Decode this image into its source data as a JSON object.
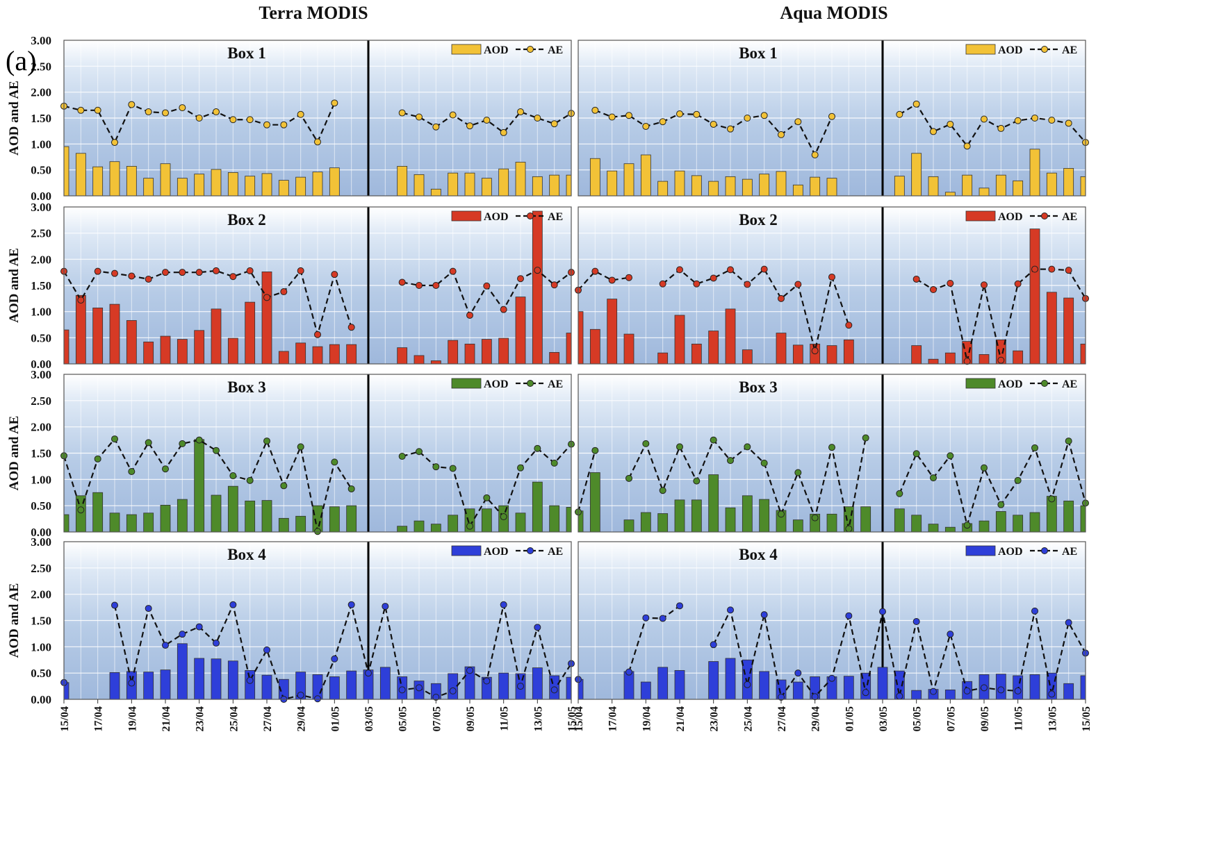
{
  "figure": {
    "columns": [
      "Terra MODIS",
      "Aqua MODIS"
    ],
    "panel_label": "(a)",
    "ylabel": "AOD and AE",
    "yticks": [
      "0.00",
      "0.50",
      "1.00",
      "1.50",
      "2.00",
      "2.50",
      "3.00"
    ],
    "legend": {
      "bar": "AOD",
      "line": "AE"
    },
    "colors": {
      "box1": "#f2c237",
      "box2": "#d63a25",
      "box3": "#4e8a2a",
      "box4": "#2e3fd9"
    }
  },
  "chart_data": [
    {
      "type": "bar+line",
      "instrument": "Terra MODIS",
      "title": "Box 1",
      "color": "#f2c237",
      "ylabel": "AOD and AE",
      "ylim": [
        0,
        3
      ],
      "grid": true,
      "legend_position": "top-right",
      "x": [
        "15/04",
        "16/04",
        "17/04",
        "18/04",
        "19/04",
        "20/04",
        "21/04",
        "22/04",
        "23/04",
        "24/04",
        "25/04",
        "26/04",
        "27/04",
        "28/04",
        "29/04",
        "30/04",
        "01/05",
        "02/05",
        "03/05",
        "04/05",
        "05/05",
        "06/05",
        "07/05",
        "08/05",
        "09/05",
        "10/05",
        "11/05",
        "12/05",
        "13/05",
        "14/05",
        "15/05"
      ],
      "divider": "03/05",
      "series": [
        {
          "name": "AOD",
          "type": "bar",
          "values": [
            0.95,
            0.82,
            0.56,
            0.66,
            0.57,
            0.34,
            0.62,
            0.34,
            0.42,
            0.51,
            0.45,
            0.38,
            0.43,
            0.3,
            0.36,
            0.46,
            0.54,
            null,
            null,
            null,
            0.57,
            0.41,
            0.13,
            0.44,
            0.44,
            0.34,
            0.52,
            0.65,
            0.37,
            0.4,
            0.4
          ]
        },
        {
          "name": "AE",
          "type": "line",
          "values": [
            1.73,
            1.65,
            1.65,
            1.03,
            1.76,
            1.62,
            1.6,
            1.7,
            1.5,
            1.62,
            1.47,
            1.47,
            1.37,
            1.37,
            1.57,
            1.04,
            1.79,
            null,
            null,
            null,
            1.6,
            1.52,
            1.33,
            1.56,
            1.35,
            1.46,
            1.22,
            1.62,
            1.5,
            1.39,
            1.59
          ]
        }
      ]
    },
    {
      "type": "bar+line",
      "instrument": "Aqua MODIS",
      "title": "Box 1",
      "color": "#f2c237",
      "ylabel": "AOD and AE",
      "ylim": [
        0,
        3
      ],
      "grid": true,
      "legend_position": "top-right",
      "x": [
        "15/04",
        "16/04",
        "17/04",
        "18/04",
        "19/04",
        "20/04",
        "21/04",
        "22/04",
        "23/04",
        "24/04",
        "25/04",
        "26/04",
        "27/04",
        "28/04",
        "29/04",
        "30/04",
        "01/05",
        "02/05",
        "03/05",
        "04/05",
        "05/05",
        "06/05",
        "07/05",
        "08/05",
        "09/05",
        "10/05",
        "11/05",
        "12/05",
        "13/05",
        "14/05",
        "15/05"
      ],
      "divider": "03/05",
      "series": [
        {
          "name": "AOD",
          "type": "bar",
          "values": [
            null,
            0.72,
            0.48,
            0.62,
            0.79,
            0.28,
            0.48,
            0.39,
            0.28,
            0.37,
            0.32,
            0.42,
            0.47,
            0.21,
            0.36,
            0.34,
            null,
            null,
            null,
            0.38,
            0.82,
            0.37,
            0.07,
            0.4,
            0.15,
            0.4,
            0.29,
            0.9,
            0.44,
            0.53,
            0.37
          ]
        },
        {
          "name": "AE",
          "type": "line",
          "values": [
            null,
            1.65,
            1.52,
            1.55,
            1.34,
            1.43,
            1.58,
            1.57,
            1.38,
            1.29,
            1.5,
            1.55,
            1.18,
            1.43,
            0.79,
            1.53,
            null,
            null,
            null,
            1.57,
            1.77,
            1.24,
            1.38,
            0.96,
            1.48,
            1.3,
            1.45,
            1.5,
            1.46,
            1.4,
            1.03
          ]
        }
      ]
    },
    {
      "type": "bar+line",
      "instrument": "Terra MODIS",
      "title": "Box 2",
      "color": "#d63a25",
      "ylabel": "AOD and AE",
      "ylim": [
        0,
        3
      ],
      "grid": true,
      "legend_position": "top-right",
      "x": [
        "15/04",
        "16/04",
        "17/04",
        "18/04",
        "19/04",
        "20/04",
        "21/04",
        "22/04",
        "23/04",
        "24/04",
        "25/04",
        "26/04",
        "27/04",
        "28/04",
        "29/04",
        "30/04",
        "01/05",
        "02/05",
        "03/05",
        "04/05",
        "05/05",
        "06/05",
        "07/05",
        "08/05",
        "09/05",
        "10/05",
        "11/05",
        "12/05",
        "13/05",
        "14/05",
        "15/05"
      ],
      "divider": "03/05",
      "series": [
        {
          "name": "AOD",
          "type": "bar",
          "values": [
            0.65,
            1.31,
            1.07,
            1.14,
            0.83,
            0.42,
            0.53,
            0.47,
            0.64,
            1.05,
            0.49,
            1.18,
            1.76,
            0.24,
            0.4,
            0.33,
            0.37,
            0.37,
            null,
            null,
            0.31,
            0.16,
            0.06,
            0.45,
            0.38,
            0.47,
            0.49,
            1.28,
            2.92,
            0.22,
            0.59
          ]
        },
        {
          "name": "AE",
          "type": "line",
          "values": [
            1.77,
            1.22,
            1.77,
            1.73,
            1.68,
            1.62,
            1.75,
            1.75,
            1.75,
            1.78,
            1.67,
            1.78,
            1.27,
            1.38,
            1.78,
            0.56,
            1.71,
            0.7,
            null,
            null,
            1.56,
            1.5,
            1.5,
            1.77,
            0.93,
            1.49,
            1.04,
            1.63,
            1.79,
            1.51,
            1.75
          ]
        }
      ]
    },
    {
      "type": "bar+line",
      "instrument": "Aqua MODIS",
      "title": "Box 2",
      "color": "#d63a25",
      "ylabel": "AOD and AE",
      "ylim": [
        0,
        3
      ],
      "grid": true,
      "legend_position": "top-right",
      "x": [
        "15/04",
        "16/04",
        "17/04",
        "18/04",
        "19/04",
        "20/04",
        "21/04",
        "22/04",
        "23/04",
        "24/04",
        "25/04",
        "26/04",
        "27/04",
        "28/04",
        "29/04",
        "30/04",
        "01/05",
        "02/05",
        "03/05",
        "04/05",
        "05/05",
        "06/05",
        "07/05",
        "08/05",
        "09/05",
        "10/05",
        "11/05",
        "12/05",
        "13/05",
        "14/05",
        "15/05"
      ],
      "divider": "03/05",
      "series": [
        {
          "name": "AOD",
          "type": "bar",
          "values": [
            1.0,
            0.66,
            1.24,
            0.57,
            null,
            0.21,
            0.93,
            0.38,
            0.63,
            1.05,
            0.27,
            null,
            0.59,
            0.36,
            0.38,
            0.35,
            0.46,
            null,
            null,
            null,
            0.35,
            0.09,
            0.21,
            0.43,
            0.18,
            0.46,
            0.25,
            2.58,
            1.37,
            1.26,
            0.38
          ]
        },
        {
          "name": "AE",
          "type": "line",
          "values": [
            1.41,
            1.77,
            1.6,
            1.65,
            null,
            1.53,
            1.8,
            1.53,
            1.64,
            1.8,
            1.52,
            1.81,
            1.25,
            1.52,
            0.25,
            1.66,
            0.74,
            null,
            null,
            null,
            1.62,
            1.42,
            1.54,
            0.05,
            1.51,
            0.07,
            1.53,
            1.81,
            1.81,
            1.79,
            1.25
          ]
        }
      ]
    },
    {
      "type": "bar+line",
      "instrument": "Terra MODIS",
      "title": "Box 3",
      "color": "#4e8a2a",
      "ylabel": "AOD and AE",
      "ylim": [
        0,
        3
      ],
      "grid": true,
      "legend_position": "top-right",
      "x": [
        "15/04",
        "16/04",
        "17/04",
        "18/04",
        "19/04",
        "20/04",
        "21/04",
        "22/04",
        "23/04",
        "24/04",
        "25/04",
        "26/04",
        "27/04",
        "28/04",
        "29/04",
        "30/04",
        "01/05",
        "02/05",
        "03/05",
        "04/05",
        "05/05",
        "06/05",
        "07/05",
        "08/05",
        "09/05",
        "10/05",
        "11/05",
        "12/05",
        "13/05",
        "14/05",
        "15/05"
      ],
      "divider": "03/05",
      "series": [
        {
          "name": "AOD",
          "type": "bar",
          "values": [
            0.33,
            0.69,
            0.75,
            0.36,
            0.33,
            0.36,
            0.51,
            0.62,
            1.76,
            0.7,
            0.87,
            0.59,
            0.6,
            0.26,
            0.3,
            0.5,
            0.48,
            0.5,
            null,
            null,
            0.11,
            0.21,
            0.15,
            0.32,
            0.44,
            0.44,
            0.5,
            0.36,
            0.95,
            0.5,
            0.47
          ]
        },
        {
          "name": "AE",
          "type": "line",
          "values": [
            1.45,
            0.42,
            1.39,
            1.77,
            1.15,
            1.7,
            1.2,
            1.68,
            1.75,
            1.55,
            1.07,
            0.98,
            1.73,
            0.88,
            1.62,
            0.01,
            1.33,
            0.82,
            null,
            null,
            1.44,
            1.53,
            1.24,
            1.21,
            0.11,
            0.65,
            0.29,
            1.22,
            1.59,
            1.31,
            1.67
          ]
        }
      ]
    },
    {
      "type": "bar+line",
      "instrument": "Aqua MODIS",
      "title": "Box 3",
      "color": "#4e8a2a",
      "ylabel": "AOD and AE",
      "ylim": [
        0,
        3
      ],
      "grid": true,
      "legend_position": "top-right",
      "x": [
        "15/04",
        "16/04",
        "17/04",
        "18/04",
        "19/04",
        "20/04",
        "21/04",
        "22/04",
        "23/04",
        "24/04",
        "25/04",
        "26/04",
        "27/04",
        "28/04",
        "29/04",
        "30/04",
        "01/05",
        "02/05",
        "03/05",
        "04/05",
        "05/05",
        "06/05",
        "07/05",
        "08/05",
        "09/05",
        "10/05",
        "11/05",
        "12/05",
        "13/05",
        "14/05",
        "15/05"
      ],
      "divider": "03/05",
      "series": [
        {
          "name": "AOD",
          "type": "bar",
          "values": [
            0.4,
            1.13,
            null,
            0.23,
            0.37,
            0.35,
            0.61,
            0.61,
            1.09,
            0.46,
            0.69,
            0.62,
            0.41,
            0.23,
            0.34,
            0.34,
            0.48,
            0.48,
            null,
            0.44,
            0.32,
            0.15,
            0.09,
            0.16,
            0.21,
            0.39,
            0.32,
            0.37,
            0.68,
            0.59,
            0.5
          ]
        },
        {
          "name": "AE",
          "type": "line",
          "values": [
            0.38,
            1.55,
            null,
            1.02,
            1.68,
            0.79,
            1.62,
            0.97,
            1.75,
            1.36,
            1.62,
            1.31,
            0.34,
            1.13,
            0.27,
            1.61,
            0.06,
            1.79,
            null,
            0.73,
            1.49,
            1.03,
            1.45,
            0.13,
            1.22,
            0.52,
            0.98,
            1.6,
            0.63,
            1.73,
            0.55
          ]
        }
      ]
    },
    {
      "type": "bar+line",
      "instrument": "Terra MODIS",
      "title": "Box 4",
      "color": "#2e3fd9",
      "ylabel": "AOD and AE",
      "ylim": [
        0,
        3
      ],
      "grid": true,
      "legend_position": "top-right",
      "x": [
        "15/04",
        "16/04",
        "17/04",
        "18/04",
        "19/04",
        "20/04",
        "21/04",
        "22/04",
        "23/04",
        "24/04",
        "25/04",
        "26/04",
        "27/04",
        "28/04",
        "29/04",
        "30/04",
        "01/05",
        "02/05",
        "03/05",
        "04/05",
        "05/05",
        "06/05",
        "07/05",
        "08/05",
        "09/05",
        "10/05",
        "11/05",
        "12/05",
        "13/05",
        "14/05",
        "15/05"
      ],
      "divider": "03/05",
      "series": [
        {
          "name": "AOD",
          "type": "bar",
          "values": [
            0.32,
            null,
            null,
            0.51,
            0.53,
            0.52,
            0.56,
            1.06,
            0.78,
            0.77,
            0.73,
            0.55,
            0.46,
            0.38,
            0.52,
            0.47,
            0.43,
            0.54,
            0.56,
            0.61,
            0.43,
            0.35,
            0.3,
            0.49,
            0.62,
            0.42,
            0.5,
            0.49,
            0.6,
            0.45,
            0.42
          ]
        },
        {
          "name": "AE",
          "type": "line",
          "values": [
            0.32,
            null,
            null,
            1.79,
            0.31,
            1.73,
            1.03,
            1.24,
            1.38,
            1.07,
            1.8,
            0.36,
            0.94,
            0.0,
            0.08,
            0.01,
            0.77,
            1.8,
            0.5,
            1.77,
            0.18,
            0.22,
            0.04,
            0.16,
            0.55,
            0.35,
            1.8,
            0.25,
            1.37,
            0.18,
            0.68
          ]
        }
      ]
    },
    {
      "type": "bar+line",
      "instrument": "Aqua MODIS",
      "title": "Box 4",
      "color": "#2e3fd9",
      "ylabel": "AOD and AE",
      "ylim": [
        0,
        3
      ],
      "grid": true,
      "legend_position": "top-right",
      "x": [
        "15/04",
        "16/04",
        "17/04",
        "18/04",
        "19/04",
        "20/04",
        "21/04",
        "22/04",
        "23/04",
        "24/04",
        "25/04",
        "26/04",
        "27/04",
        "28/04",
        "29/04",
        "30/04",
        "01/05",
        "02/05",
        "03/05",
        "04/05",
        "05/05",
        "06/05",
        "07/05",
        "08/05",
        "09/05",
        "10/05",
        "11/05",
        "12/05",
        "13/05",
        "14/05",
        "15/05"
      ],
      "divider": "03/05",
      "series": [
        {
          "name": "AOD",
          "type": "bar",
          "values": [
            0.38,
            null,
            null,
            0.53,
            0.33,
            0.61,
            0.55,
            null,
            0.72,
            0.78,
            0.75,
            0.53,
            0.37,
            0.33,
            0.43,
            0.43,
            0.44,
            0.5,
            0.61,
            0.54,
            0.17,
            0.19,
            0.18,
            0.34,
            0.47,
            0.48,
            0.45,
            0.47,
            0.5,
            0.3,
            0.45
          ]
        },
        {
          "name": "AE",
          "type": "line",
          "values": [
            0.38,
            null,
            null,
            0.52,
            1.55,
            1.54,
            1.78,
            null,
            1.04,
            1.7,
            0.28,
            1.61,
            0.04,
            0.5,
            0.05,
            0.4,
            1.59,
            0.13,
            1.67,
            0.06,
            1.48,
            0.15,
            1.24,
            0.16,
            0.22,
            0.18,
            0.16,
            1.68,
            0.1,
            1.46,
            0.88
          ]
        }
      ]
    }
  ]
}
